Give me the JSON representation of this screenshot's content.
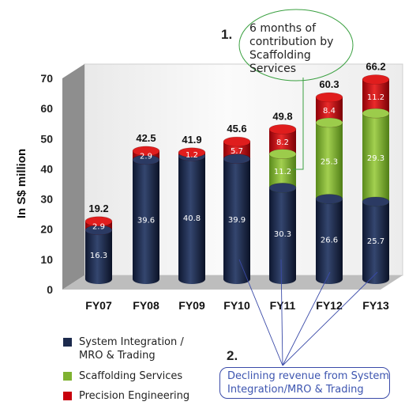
{
  "chart_data": {
    "type": "bar",
    "stacked": true,
    "ylabel": "In S$ million",
    "ylim": [
      0,
      70
    ],
    "yticks": [
      0,
      10,
      20,
      30,
      40,
      50,
      60,
      70
    ],
    "categories": [
      "FY07",
      "FY08",
      "FY09",
      "FY10",
      "FY11",
      "FY12",
      "FY13"
    ],
    "series": [
      {
        "name": "System Integration / MRO & Trading",
        "color": "#1c2a4d",
        "values": [
          16.3,
          39.6,
          40.8,
          39.9,
          30.3,
          26.6,
          25.7
        ]
      },
      {
        "name": "Scaffolding Services",
        "color": "#7fb231",
        "values": [
          0,
          0,
          0,
          0,
          11.2,
          25.3,
          29.3
        ]
      },
      {
        "name": "Precision Engineering",
        "color": "#c8000c",
        "values": [
          2.9,
          2.9,
          1.2,
          5.7,
          8.2,
          8.4,
          11.2
        ]
      }
    ],
    "totals": [
      19.2,
      42.5,
      41.9,
      45.6,
      49.8,
      60.3,
      66.2
    ],
    "legend_position": "bottom-left",
    "grid": false,
    "annotations": [
      {
        "number": "1.",
        "text": "6 months of contribution by Scaffolding Services"
      },
      {
        "number": "2.",
        "text": "Declining revenue from System Integration/MRO & Trading"
      }
    ]
  }
}
